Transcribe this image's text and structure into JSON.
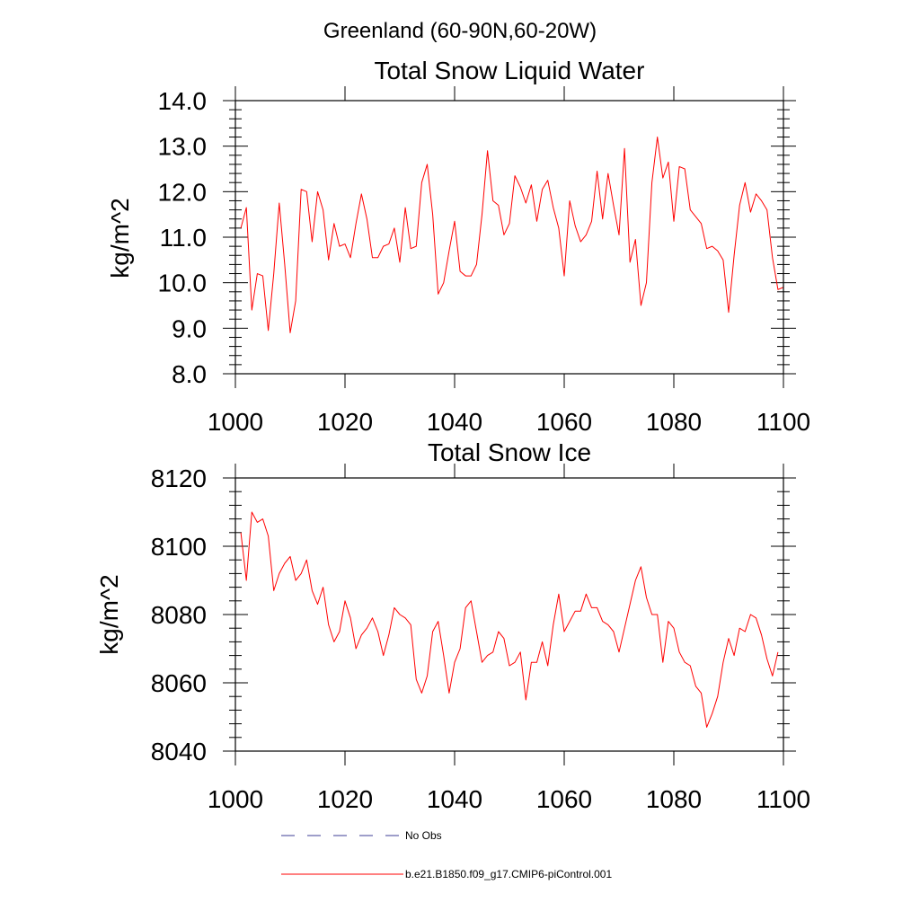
{
  "figure": {
    "supertitle": "Greenland (60-90N,60-20W)"
  },
  "chart_data": [
    {
      "type": "line",
      "title": "Total Snow Liquid Water",
      "ylabel": "kg/m^2",
      "xlabel": "",
      "xlim": [
        1000,
        1100
      ],
      "ylim": [
        8.0,
        14.0
      ],
      "xticks": [
        "1000",
        "1020",
        "1040",
        "1060",
        "1080",
        "1100"
      ],
      "yticks": [
        "8.0",
        "9.0",
        "10.0",
        "11.0",
        "12.0",
        "13.0",
        "14.0"
      ],
      "grid": false,
      "series": [
        {
          "name": "b.e21.B1850.f09_g17.CMIP6-piControl.001",
          "color": "#ff0000",
          "x_start": 1001,
          "values": [
            11.2,
            11.65,
            9.4,
            10.2,
            10.15,
            8.95,
            10.2,
            11.75,
            10.4,
            8.9,
            9.6,
            12.05,
            12.0,
            10.9,
            12.0,
            11.6,
            10.5,
            11.3,
            10.8,
            10.85,
            10.55,
            11.3,
            11.95,
            11.4,
            10.55,
            10.55,
            10.8,
            10.85,
            11.2,
            10.45,
            11.65,
            10.75,
            10.8,
            12.2,
            12.6,
            11.5,
            9.75,
            10.0,
            10.7,
            11.35,
            10.25,
            10.15,
            10.15,
            10.4,
            11.5,
            12.9,
            11.8,
            11.7,
            11.05,
            11.3,
            12.35,
            12.1,
            11.75,
            12.15,
            11.35,
            12.05,
            12.25,
            11.65,
            11.2,
            10.15,
            11.8,
            11.25,
            10.9,
            11.05,
            11.35,
            12.45,
            11.4,
            12.4,
            11.7,
            11.05,
            12.95,
            10.45,
            10.95,
            9.5,
            10.0,
            12.2,
            13.2,
            12.3,
            12.65,
            11.35,
            12.55,
            12.5,
            11.6,
            11.45,
            11.3,
            10.75,
            10.8,
            10.7,
            10.5,
            9.35,
            10.6,
            11.7,
            12.2,
            11.55,
            11.95,
            11.8,
            11.6,
            10.55,
            9.85,
            9.9
          ]
        }
      ]
    },
    {
      "type": "line",
      "title": "Total Snow Ice",
      "ylabel": "kg/m^2",
      "xlabel": "",
      "xlim": [
        1000,
        1100
      ],
      "ylim": [
        8040,
        8120
      ],
      "xticks": [
        "1000",
        "1020",
        "1040",
        "1060",
        "1080",
        "1100"
      ],
      "yticks": [
        "8040",
        "8060",
        "8080",
        "8100",
        "8120"
      ],
      "grid": false,
      "series": [
        {
          "name": "b.e21.B1850.f09_g17.CMIP6-piControl.001",
          "color": "#ff0000",
          "x_start": 1001,
          "values": [
            8104,
            8090,
            8110,
            8107,
            8108,
            8103,
            8087,
            8092,
            8095,
            8097,
            8090,
            8092,
            8096,
            8087,
            8083,
            8088,
            8077,
            8072,
            8075,
            8084,
            8079,
            8070,
            8074,
            8076,
            8079,
            8075,
            8068,
            8074,
            8082,
            8080,
            8079,
            8077,
            8061,
            8057,
            8062,
            8075,
            8078,
            8068,
            8057,
            8066,
            8070,
            8082,
            8084,
            8075,
            8066,
            8068,
            8069,
            8075,
            8073,
            8065,
            8066,
            8069,
            8055,
            8066,
            8066,
            8072,
            8065,
            8077,
            8086,
            8075,
            8078,
            8081,
            8081,
            8086,
            8082,
            8082,
            8078,
            8077,
            8075,
            8069,
            8076,
            8083,
            8090,
            8094,
            8085,
            8080,
            8080,
            8066,
            8078,
            8076,
            8069,
            8066,
            8065,
            8059,
            8057,
            8047,
            8051,
            8056,
            8066,
            8073,
            8068,
            8076,
            8075,
            8080,
            8079,
            8074,
            8067,
            8062,
            8069
          ]
        }
      ]
    }
  ],
  "legend": {
    "placement": "bottom",
    "entries": [
      {
        "label": "No Obs",
        "color": "#3c3c96",
        "style": "dashed"
      },
      {
        "label": "b.e21.B1850.f09_g17.CMIP6-piControl.001",
        "color": "#ff0000",
        "style": "solid"
      }
    ]
  }
}
